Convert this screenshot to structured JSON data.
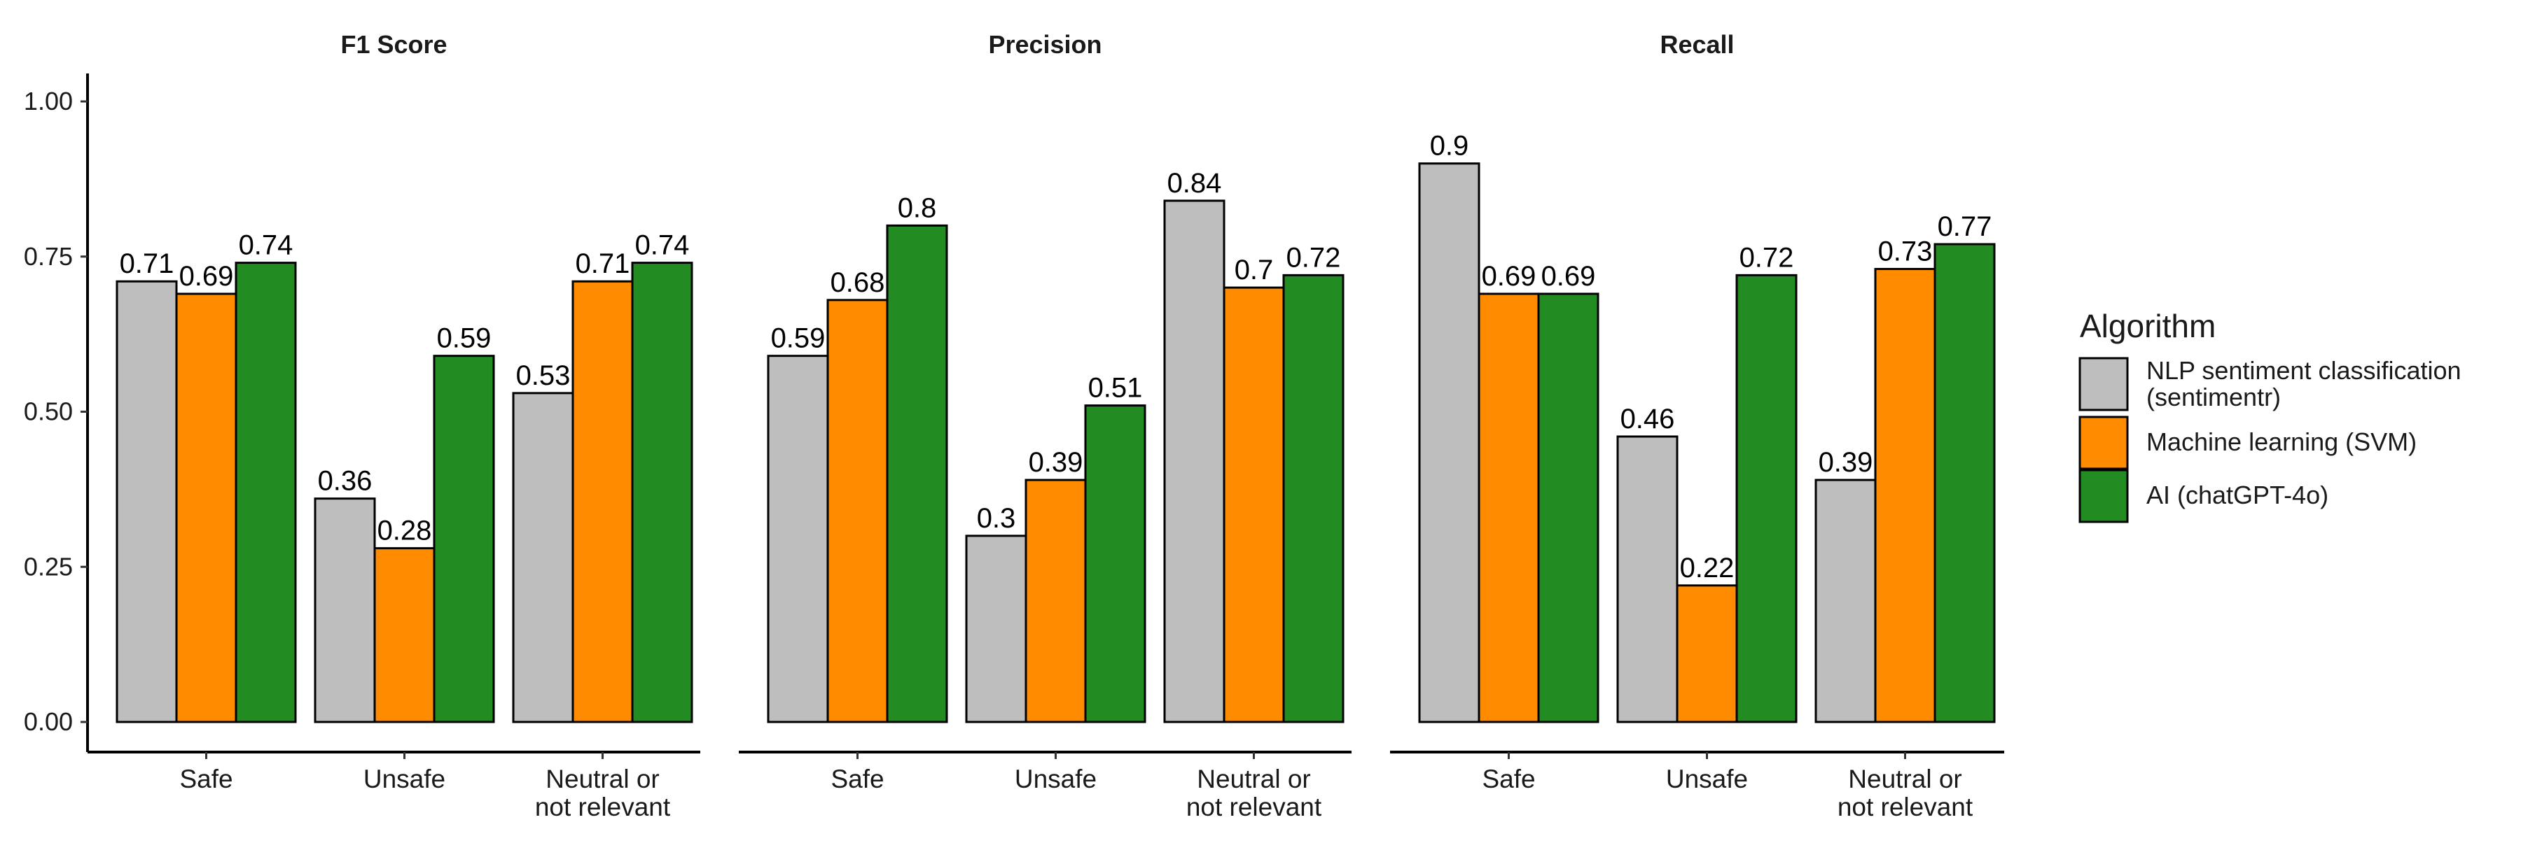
{
  "chart_data": {
    "type": "bar",
    "panels": [
      {
        "title": "F1 Score",
        "categories": [
          "Safe",
          "Unsafe",
          "Neutral or not relevant"
        ],
        "series": [
          {
            "name": "NLP sentiment classification (sentimentr)",
            "values": [
              0.71,
              0.36,
              0.53
            ]
          },
          {
            "name": "Machine learning (SVM)",
            "values": [
              0.69,
              0.28,
              0.71
            ]
          },
          {
            "name": "AI (chatGPT-4o)",
            "values": [
              0.74,
              0.59,
              0.74
            ]
          }
        ]
      },
      {
        "title": "Precision",
        "categories": [
          "Safe",
          "Unsafe",
          "Neutral or not relevant"
        ],
        "series": [
          {
            "name": "NLP sentiment classification (sentimentr)",
            "values": [
              0.59,
              0.3,
              0.84
            ]
          },
          {
            "name": "Machine learning (SVM)",
            "values": [
              0.68,
              0.39,
              0.7
            ]
          },
          {
            "name": "AI (chatGPT-4o)",
            "values": [
              0.8,
              0.51,
              0.72
            ]
          }
        ]
      },
      {
        "title": "Recall",
        "categories": [
          "Safe",
          "Unsafe",
          "Neutral or not relevant"
        ],
        "series": [
          {
            "name": "NLP sentiment classification (sentimentr)",
            "values": [
              0.9,
              0.46,
              0.39
            ]
          },
          {
            "name": "Machine learning (SVM)",
            "values": [
              0.69,
              0.22,
              0.73
            ]
          },
          {
            "name": "AI (chatGPT-4o)",
            "values": [
              0.69,
              0.72,
              0.77
            ]
          }
        ]
      }
    ],
    "category_labels": [
      [
        "Safe"
      ],
      [
        "Unsafe"
      ],
      [
        "Neutral or",
        "not relevant"
      ]
    ],
    "yticks": [
      "0.00",
      "0.25",
      "0.50",
      "0.75",
      "1.00"
    ],
    "ylim": [
      0,
      1
    ],
    "legend": {
      "title": "Algorithm",
      "placement": "right",
      "entries": [
        {
          "lines": [
            "NLP sentiment classification",
            "(sentimentr)"
          ],
          "color": "#bebebe"
        },
        {
          "lines": [
            "Machine learning (SVM)"
          ],
          "color": "#ff8c00"
        },
        {
          "lines": [
            "AI (chatGPT-4o)"
          ],
          "color": "#228b22"
        }
      ]
    },
    "colors": [
      "#bebebe",
      "#ff8c00",
      "#228b22"
    ],
    "grid": false
  }
}
